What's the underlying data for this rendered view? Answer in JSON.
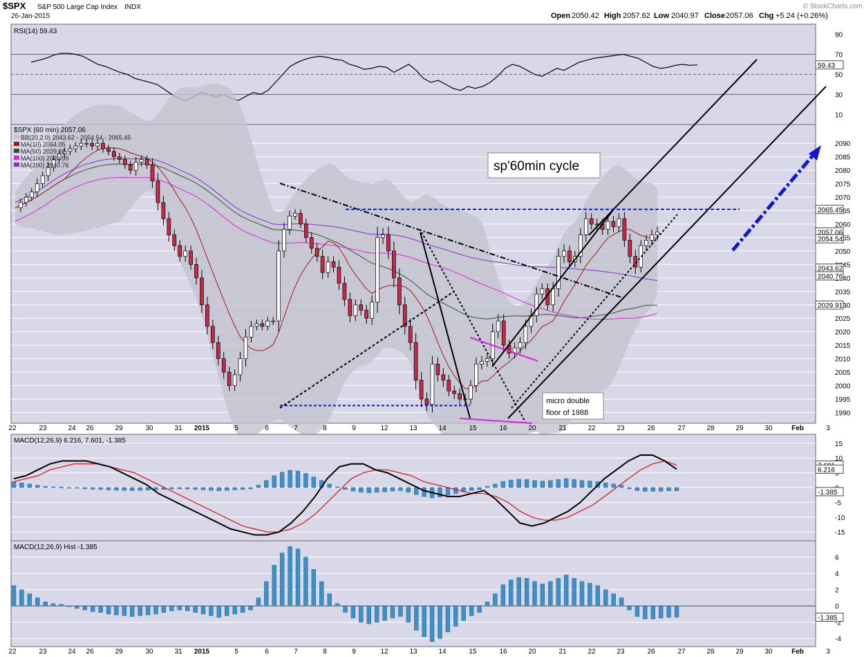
{
  "header": {
    "symbol": "$SPX",
    "name": "S&P 500 Large Cap Index",
    "exchange": "INDX",
    "date": "26-Jan-2015",
    "open_label": "Open",
    "open": "2050.42",
    "high_label": "High",
    "high": "2057.62",
    "low_label": "Low",
    "low": "2040.97",
    "close_label": "Close",
    "close": "2057.06",
    "chg_label": "Chg",
    "chg": "+5.24 (+0.26%)",
    "watermark": "© StockCharts.com"
  },
  "colors": {
    "panel_bg": "#d8d8e8",
    "grid": "#ffffff",
    "up_candle": "#ffffff",
    "down_candle": "#c8294b",
    "bollinger_fill": "#c4c4d0",
    "ma10": "#a01818",
    "ma50": "#305030",
    "ma100": "#e020e0",
    "ma200": "#8030d0",
    "macd_line": "#000000",
    "signal_line": "#e01010",
    "histogram": "#3d8fc8",
    "annotation_blue": "#1018d0"
  },
  "chart_data": [
    {
      "type": "line",
      "title": "RSI(14) 59.43",
      "ylim": [
        0,
        100
      ],
      "yticks": [
        10,
        30,
        50,
        70,
        90
      ],
      "reference_lines": [
        30,
        50,
        70
      ],
      "last_value_label": "59.43",
      "series": [
        {
          "name": "RSI(14)",
          "values": [
            62,
            64,
            66,
            69,
            71,
            71,
            70,
            68,
            64,
            60,
            58,
            55,
            52,
            50,
            46,
            44,
            42,
            40,
            35,
            30,
            26,
            24,
            28,
            32,
            30,
            28,
            30,
            26,
            24,
            28,
            32,
            30,
            34,
            42,
            50,
            58,
            62,
            65,
            67,
            68,
            67,
            65,
            64,
            60,
            58,
            55,
            56,
            58,
            57,
            52,
            56,
            60,
            54,
            46,
            42,
            44,
            40,
            36,
            34,
            38,
            36,
            38,
            42,
            48,
            56,
            60,
            58,
            54,
            50,
            48,
            52,
            56,
            54,
            58,
            62,
            64,
            66,
            67,
            68,
            69,
            70,
            68,
            66,
            62,
            58,
            56,
            57,
            59,
            60,
            59,
            59.43
          ]
        }
      ]
    },
    {
      "type": "candlestick",
      "title": "$SPX (60 min) 2057.06",
      "ylim": [
        1986,
        2097
      ],
      "yticks": [
        1990,
        1995,
        2000,
        2005,
        2010,
        2015,
        2020,
        2025,
        2030,
        2035,
        2040,
        2045,
        2050,
        2055,
        2060,
        2065,
        2070,
        2075,
        2080,
        2085,
        2090
      ],
      "xtick_labels": [
        "22",
        "23",
        "24",
        "26",
        "29",
        "30",
        "31",
        "2015",
        "5",
        "6",
        "7",
        "8",
        "9",
        "12",
        "13",
        "14",
        "15",
        "16",
        "20",
        "21",
        "22",
        "23",
        "26",
        "27",
        "28",
        "29",
        "30",
        "Feb",
        "3"
      ],
      "legend": [
        {
          "name": "BB(20,2.0) 2043.62 - 2054.54 - 2065.45"
        },
        {
          "name": "MA(10) 2054.05"
        },
        {
          "name": "MA(50) 2029.91"
        },
        {
          "name": "MA(100) 2029.59"
        },
        {
          "name": "MA(200) 2040.76"
        }
      ],
      "price_labels": [
        "2065.45",
        "2057.06",
        "2054.54",
        "2043.62",
        "2040.76",
        "2029.91"
      ],
      "closes": [
        2066,
        2068,
        2070,
        2072,
        2075,
        2078,
        2081,
        2084,
        2086,
        2087,
        2088,
        2089,
        2090,
        2090,
        2089,
        2090,
        2088,
        2087,
        2085,
        2084,
        2082,
        2080,
        2083,
        2084,
        2082,
        2076,
        2068,
        2062,
        2056,
        2052,
        2048,
        2050,
        2045,
        2040,
        2030,
        2022,
        2016,
        2010,
        2005,
        2000,
        2004,
        2010,
        2018,
        2022,
        2023,
        2022,
        2024,
        2024,
        2050,
        2058,
        2063,
        2064,
        2060,
        2055,
        2051,
        2048,
        2042,
        2046,
        2044,
        2038,
        2032,
        2026,
        2030,
        2028,
        2025,
        2031,
        2055,
        2056,
        2050,
        2040,
        2030,
        2022,
        2016,
        2002,
        1995,
        1993,
        2008,
        2004,
        2002,
        1998,
        1997,
        1995,
        1995,
        2000,
        2008,
        2009,
        2010,
        2020,
        2024,
        2015,
        2012,
        2014,
        2016,
        2022,
        2026,
        2034,
        2036,
        2030,
        2036,
        2048,
        2050,
        2046,
        2048,
        2056,
        2062,
        2060,
        2060,
        2058,
        2061,
        2059,
        2062,
        2054,
        2048,
        2044,
        2052,
        2054,
        2056,
        2057.06
      ],
      "volatility": [
        3,
        3,
        3,
        3,
        4,
        3,
        4,
        3,
        3,
        3,
        3,
        3,
        3,
        3,
        3,
        3,
        3,
        3,
        3,
        3,
        3,
        3,
        4,
        3,
        3,
        5,
        6,
        5,
        5,
        4,
        4,
        4,
        4,
        5,
        6,
        6,
        5,
        5,
        5,
        4,
        4,
        5,
        6,
        4,
        3,
        3,
        3,
        3,
        8,
        5,
        4,
        3,
        3,
        4,
        4,
        4,
        5,
        4,
        4,
        5,
        5,
        5,
        4,
        4,
        4,
        5,
        8,
        5,
        6,
        7,
        7,
        6,
        6,
        7,
        6,
        5,
        6,
        5,
        5,
        4,
        4,
        4,
        4,
        4,
        5,
        4,
        4,
        6,
        5,
        5,
        4,
        4,
        4,
        5,
        5,
        5,
        4,
        4,
        5,
        6,
        5,
        4,
        4,
        5,
        5,
        4,
        4,
        4,
        4,
        4,
        4,
        5,
        5,
        5,
        4,
        4,
        4,
        4
      ]
    },
    {
      "type": "line",
      "title": "MACD(12,26,9) 6.216, 7.601, -1.385",
      "ylim": [
        -18,
        18
      ],
      "yticks": [
        -15,
        -10,
        -5,
        0,
        5,
        10,
        15
      ],
      "value_labels": [
        "7.601",
        "6.216",
        "-1.385"
      ],
      "series": [
        {
          "name": "MACD",
          "values": [
            3,
            4,
            6,
            8,
            9,
            9,
            9,
            8,
            7,
            5,
            3,
            1,
            -2,
            -4,
            -6,
            -8,
            -10,
            -12,
            -14,
            -15,
            -16,
            -16,
            -15,
            -12,
            -8,
            -3,
            3,
            7,
            8,
            8,
            6,
            5,
            3,
            1,
            -1,
            -2,
            -3,
            -3,
            -2,
            -1,
            -4,
            -8,
            -12,
            -13,
            -12,
            -10,
            -8,
            -5,
            -1,
            3,
            6,
            9,
            11,
            11,
            9,
            6.216
          ]
        },
        {
          "name": "Signal",
          "values": [
            2,
            3,
            4,
            6,
            7,
            8,
            8,
            8,
            7,
            6,
            5,
            3,
            1,
            -1,
            -3,
            -5,
            -7,
            -9,
            -11,
            -13,
            -14,
            -15,
            -15,
            -14,
            -12,
            -9,
            -5,
            -1,
            3,
            5,
            6,
            6,
            5,
            4,
            2,
            1,
            0,
            -1,
            -2,
            -2,
            -3,
            -5,
            -8,
            -10,
            -11,
            -11,
            -10,
            -8,
            -6,
            -3,
            0,
            3,
            6,
            8,
            9,
            7.601
          ]
        }
      ]
    },
    {
      "type": "bar",
      "title": "MACD(12,26,9) Hist -1.385",
      "ylim": [
        -5,
        8
      ],
      "yticks": [
        -4,
        -2,
        0,
        2,
        4,
        6
      ],
      "last_value_label": "-1.385",
      "values": [
        2.5,
        2,
        1.5,
        1,
        0.5,
        0.3,
        0.2,
        0,
        -0.3,
        -0.5,
        -0.7,
        -0.8,
        -1,
        -1.1,
        -1.2,
        -1.3,
        -1.2,
        -1.1,
        -1,
        -0.8,
        -0.6,
        -0.5,
        -0.6,
        -0.8,
        -1,
        -1.2,
        -1.4,
        -1.2,
        -1,
        -0.8,
        -0.5,
        1,
        3,
        5,
        6.5,
        7.3,
        7,
        6,
        4.5,
        3,
        1.5,
        0.3,
        -0.8,
        -1.5,
        -2,
        -2.2,
        -2,
        -1.8,
        -1.5,
        -1.3,
        -2,
        -3,
        -3.8,
        -4.4,
        -4,
        -3.2,
        -2.5,
        -1.8,
        -1.2,
        -0.8,
        0.5,
        1.5,
        2.6,
        3.2,
        3.5,
        3.4,
        3,
        2.7,
        3,
        3.4,
        3.8,
        3.4,
        3,
        2.8,
        2.5,
        2,
        1.5,
        1,
        -0.5,
        -1.3,
        -1.6,
        -1.6,
        -1.5,
        -1.4,
        -1.385
      ]
    }
  ],
  "annotations": {
    "title_box": "sp'60min cycle",
    "note_line1": "micro double",
    "note_line2": "floor of 1988"
  }
}
